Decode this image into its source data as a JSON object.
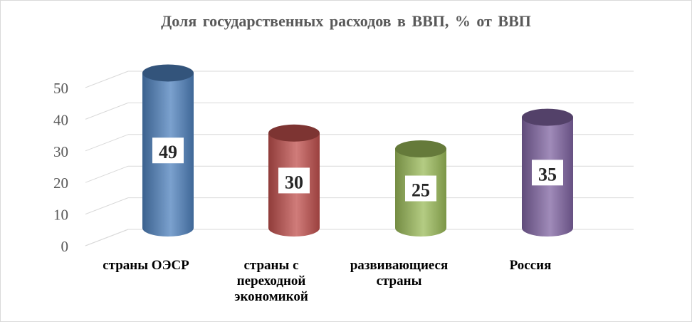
{
  "chart_data": {
    "type": "bar",
    "title": "Доля государственных  расходов в ВВП, % от ВВП",
    "categories": [
      "страны ОЭСР",
      "страны с переходной экономикой",
      "развивающиеся страны",
      "Россия"
    ],
    "values": [
      49,
      30,
      25,
      35
    ],
    "ylim": [
      0,
      50
    ],
    "yticks": [
      0,
      10,
      20,
      30,
      40,
      50
    ],
    "grid": true,
    "legend": "none",
    "colors": [
      "#4f81bd",
      "#c0504d",
      "#9bbb59",
      "#8064a2"
    ]
  }
}
